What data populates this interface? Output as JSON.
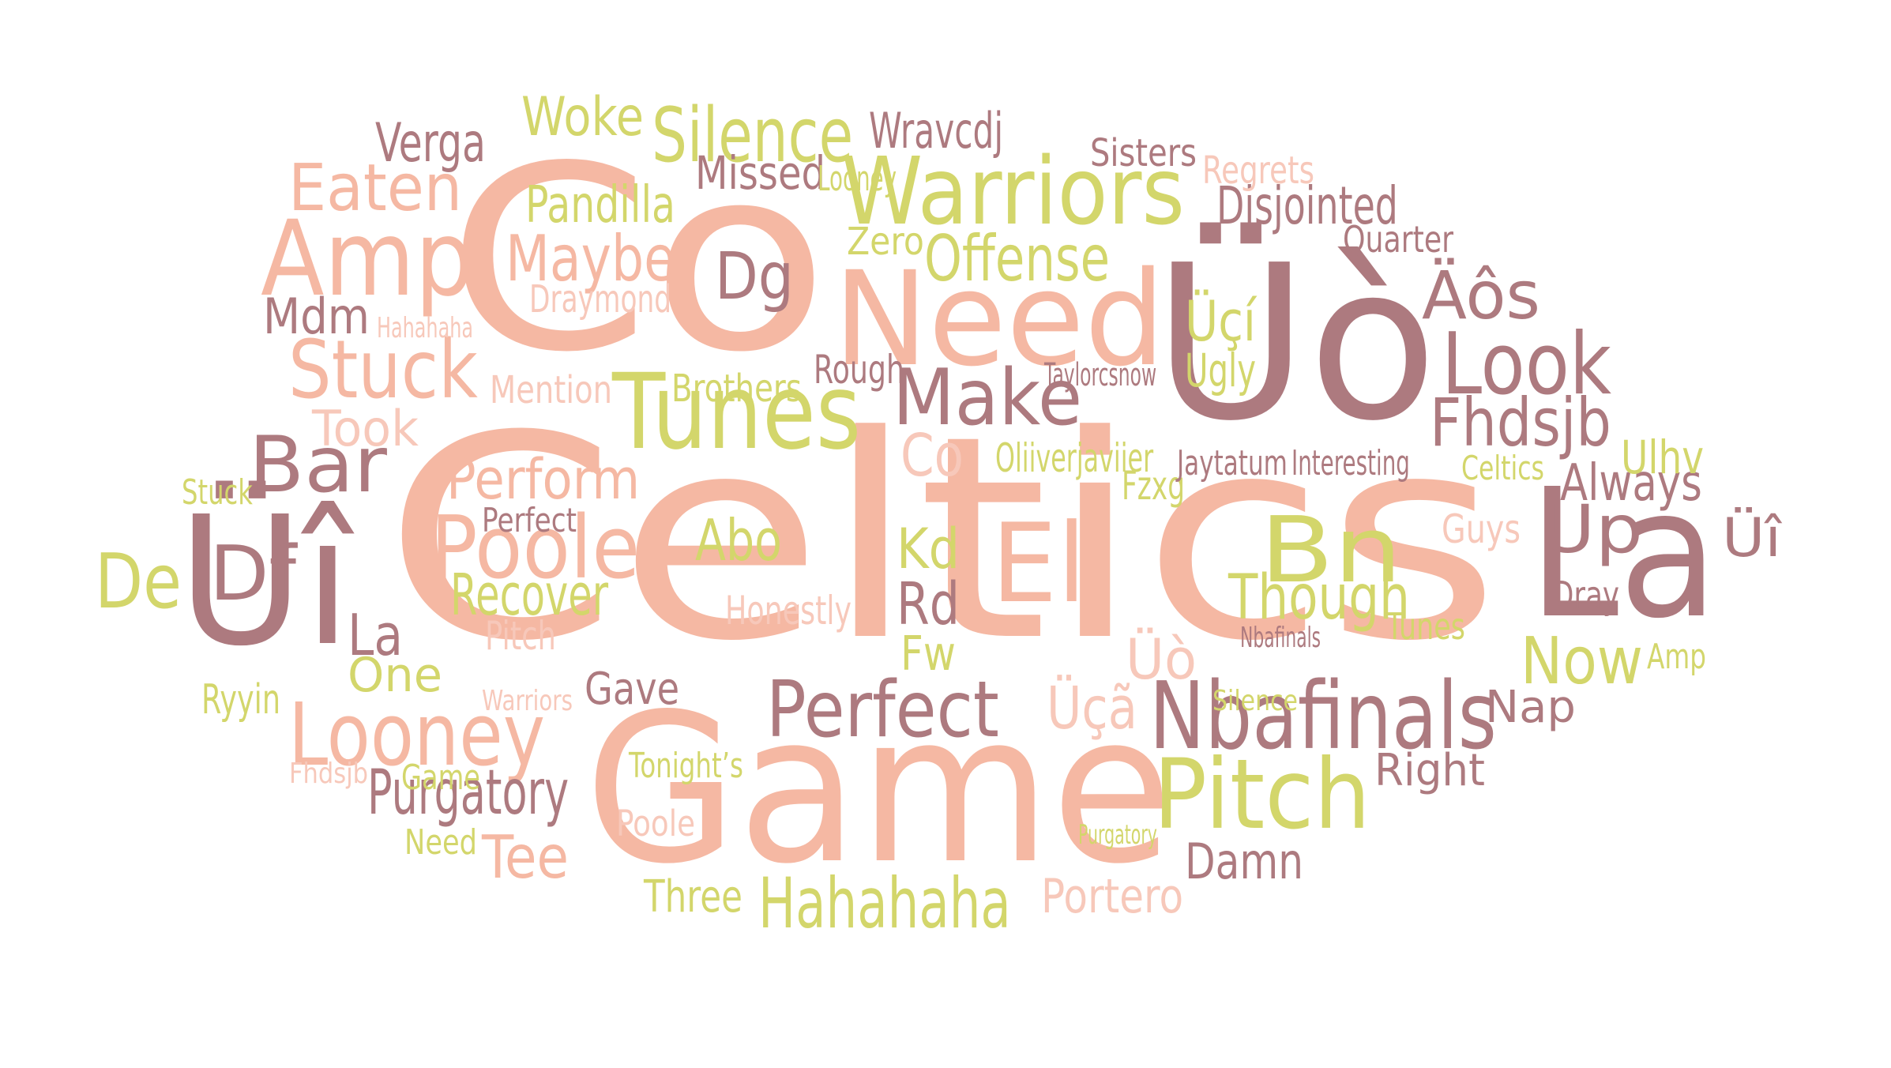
{
  "palette": {
    "pink": "#f5b8a3",
    "olive": "#d3d66b",
    "mauve": "#ad7a7f",
    "blush": "#f7c8ba"
  },
  "words": [
    {
      "text": "Celtics",
      "color": "pink"
    },
    {
      "text": "Co",
      "color": "pink"
    },
    {
      "text": "Game",
      "color": "pink"
    },
    {
      "text": "Üò",
      "color": "mauve"
    },
    {
      "text": "Üî",
      "color": "mauve"
    },
    {
      "text": "La",
      "color": "mauve"
    },
    {
      "text": "Need",
      "color": "pink"
    },
    {
      "text": "Warriors",
      "color": "olive"
    },
    {
      "text": "Amp",
      "color": "pink"
    },
    {
      "text": "Tunes",
      "color": "olive"
    },
    {
      "text": "Pitch",
      "color": "olive"
    },
    {
      "text": "Nbafinals",
      "color": "mauve"
    },
    {
      "text": "Looney",
      "color": "pink"
    },
    {
      "text": "Poole",
      "color": "pink"
    },
    {
      "text": "Stuck",
      "color": "pink"
    },
    {
      "text": "Perfect",
      "color": "mauve"
    },
    {
      "text": "Look",
      "color": "mauve"
    },
    {
      "text": "Silence",
      "color": "olive"
    },
    {
      "text": "Make",
      "color": "mauve"
    },
    {
      "text": "El",
      "color": "pink"
    },
    {
      "text": "Bn",
      "color": "olive"
    },
    {
      "text": "Bar",
      "color": "mauve"
    },
    {
      "text": "Eaten",
      "color": "pink"
    },
    {
      "text": "Dg",
      "color": "mauve"
    },
    {
      "text": "Äôs",
      "color": "mauve"
    },
    {
      "text": "Fhdsjb",
      "color": "mauve"
    },
    {
      "text": "Hahahaha",
      "color": "olive"
    },
    {
      "text": "Offense",
      "color": "olive"
    },
    {
      "text": "Maybe",
      "color": "pink"
    },
    {
      "text": "Up",
      "color": "mauve"
    },
    {
      "text": "De",
      "color": "olive"
    },
    {
      "text": "Df",
      "color": "mauve"
    },
    {
      "text": "Perform",
      "color": "pink"
    },
    {
      "text": "Purgatory",
      "color": "mauve"
    },
    {
      "text": "Tee",
      "color": "pink"
    },
    {
      "text": "Now",
      "color": "olive"
    },
    {
      "text": "Though",
      "color": "olive"
    },
    {
      "text": "Disjointed",
      "color": "mauve"
    },
    {
      "text": "Kd",
      "color": "olive"
    },
    {
      "text": "Rd",
      "color": "mauve"
    },
    {
      "text": "Recover",
      "color": "olive"
    },
    {
      "text": "Abo",
      "color": "olive"
    },
    {
      "text": "Üçí",
      "color": "olive"
    },
    {
      "text": "Üçã",
      "color": "blush"
    },
    {
      "text": "Üò",
      "color": "blush"
    },
    {
      "text": "Verga",
      "color": "mauve"
    },
    {
      "text": "Pandilla",
      "color": "olive"
    },
    {
      "text": "Woke",
      "color": "olive"
    },
    {
      "text": "Wravcdj",
      "color": "mauve"
    },
    {
      "text": "Missed",
      "color": "mauve"
    },
    {
      "text": "Ugly",
      "color": "olive"
    },
    {
      "text": "Always",
      "color": "mauve"
    },
    {
      "text": "Ulhv",
      "color": "olive"
    },
    {
      "text": "Portero",
      "color": "blush"
    },
    {
      "text": "Damn",
      "color": "mauve"
    },
    {
      "text": "Took",
      "color": "blush"
    },
    {
      "text": "Mdm",
      "color": "mauve"
    },
    {
      "text": "Co",
      "color": "blush"
    },
    {
      "text": "Fw",
      "color": "olive"
    },
    {
      "text": "La",
      "color": "mauve"
    },
    {
      "text": "One",
      "color": "olive"
    },
    {
      "text": "Gave",
      "color": "mauve"
    },
    {
      "text": "Nap",
      "color": "mauve"
    },
    {
      "text": "Right",
      "color": "mauve"
    },
    {
      "text": "Three",
      "color": "olive"
    },
    {
      "text": "Sisters",
      "color": "mauve"
    },
    {
      "text": "Draymond",
      "color": "blush"
    },
    {
      "text": "Brothers",
      "color": "olive"
    },
    {
      "text": "Mention",
      "color": "blush"
    },
    {
      "text": "Rough",
      "color": "mauve"
    },
    {
      "text": "Zero",
      "color": "olive"
    },
    {
      "text": "Quarter",
      "color": "mauve"
    },
    {
      "text": "Guys",
      "color": "blush"
    },
    {
      "text": "Üî",
      "color": "mauve"
    },
    {
      "text": "Oliiverjaviier",
      "color": "olive"
    },
    {
      "text": "Fzxg",
      "color": "olive"
    },
    {
      "text": "Honestly",
      "color": "blush"
    },
    {
      "text": "Pitch",
      "color": "blush"
    },
    {
      "text": "Ryyin",
      "color": "olive"
    },
    {
      "text": "Stuck",
      "color": "olive"
    },
    {
      "text": "Need",
      "color": "olive"
    },
    {
      "text": "Poole",
      "color": "blush"
    },
    {
      "text": "Game",
      "color": "olive"
    },
    {
      "text": "Dray",
      "color": "mauve"
    },
    {
      "text": "Tunes",
      "color": "olive"
    },
    {
      "text": "Regrets",
      "color": "blush"
    },
    {
      "text": "Looney",
      "color": "olive"
    },
    {
      "text": "Jaytatum",
      "color": "mauve"
    },
    {
      "text": "Interesting",
      "color": "mauve"
    },
    {
      "text": "Celtics",
      "color": "olive"
    },
    {
      "text": "Amp",
      "color": "olive"
    },
    {
      "text": "Tonight’s",
      "color": "olive"
    },
    {
      "text": "Perfect",
      "color": "mauve"
    },
    {
      "text": "Taylorcsnow",
      "color": "mauve"
    },
    {
      "text": "Hahahaha",
      "color": "blush"
    },
    {
      "text": "Warriors",
      "color": "blush"
    },
    {
      "text": "Silence",
      "color": "olive"
    },
    {
      "text": "Nbafinals",
      "color": "mauve"
    },
    {
      "text": "Fhdsjb",
      "color": "blush"
    },
    {
      "text": "Purgatory",
      "color": "olive"
    }
  ]
}
